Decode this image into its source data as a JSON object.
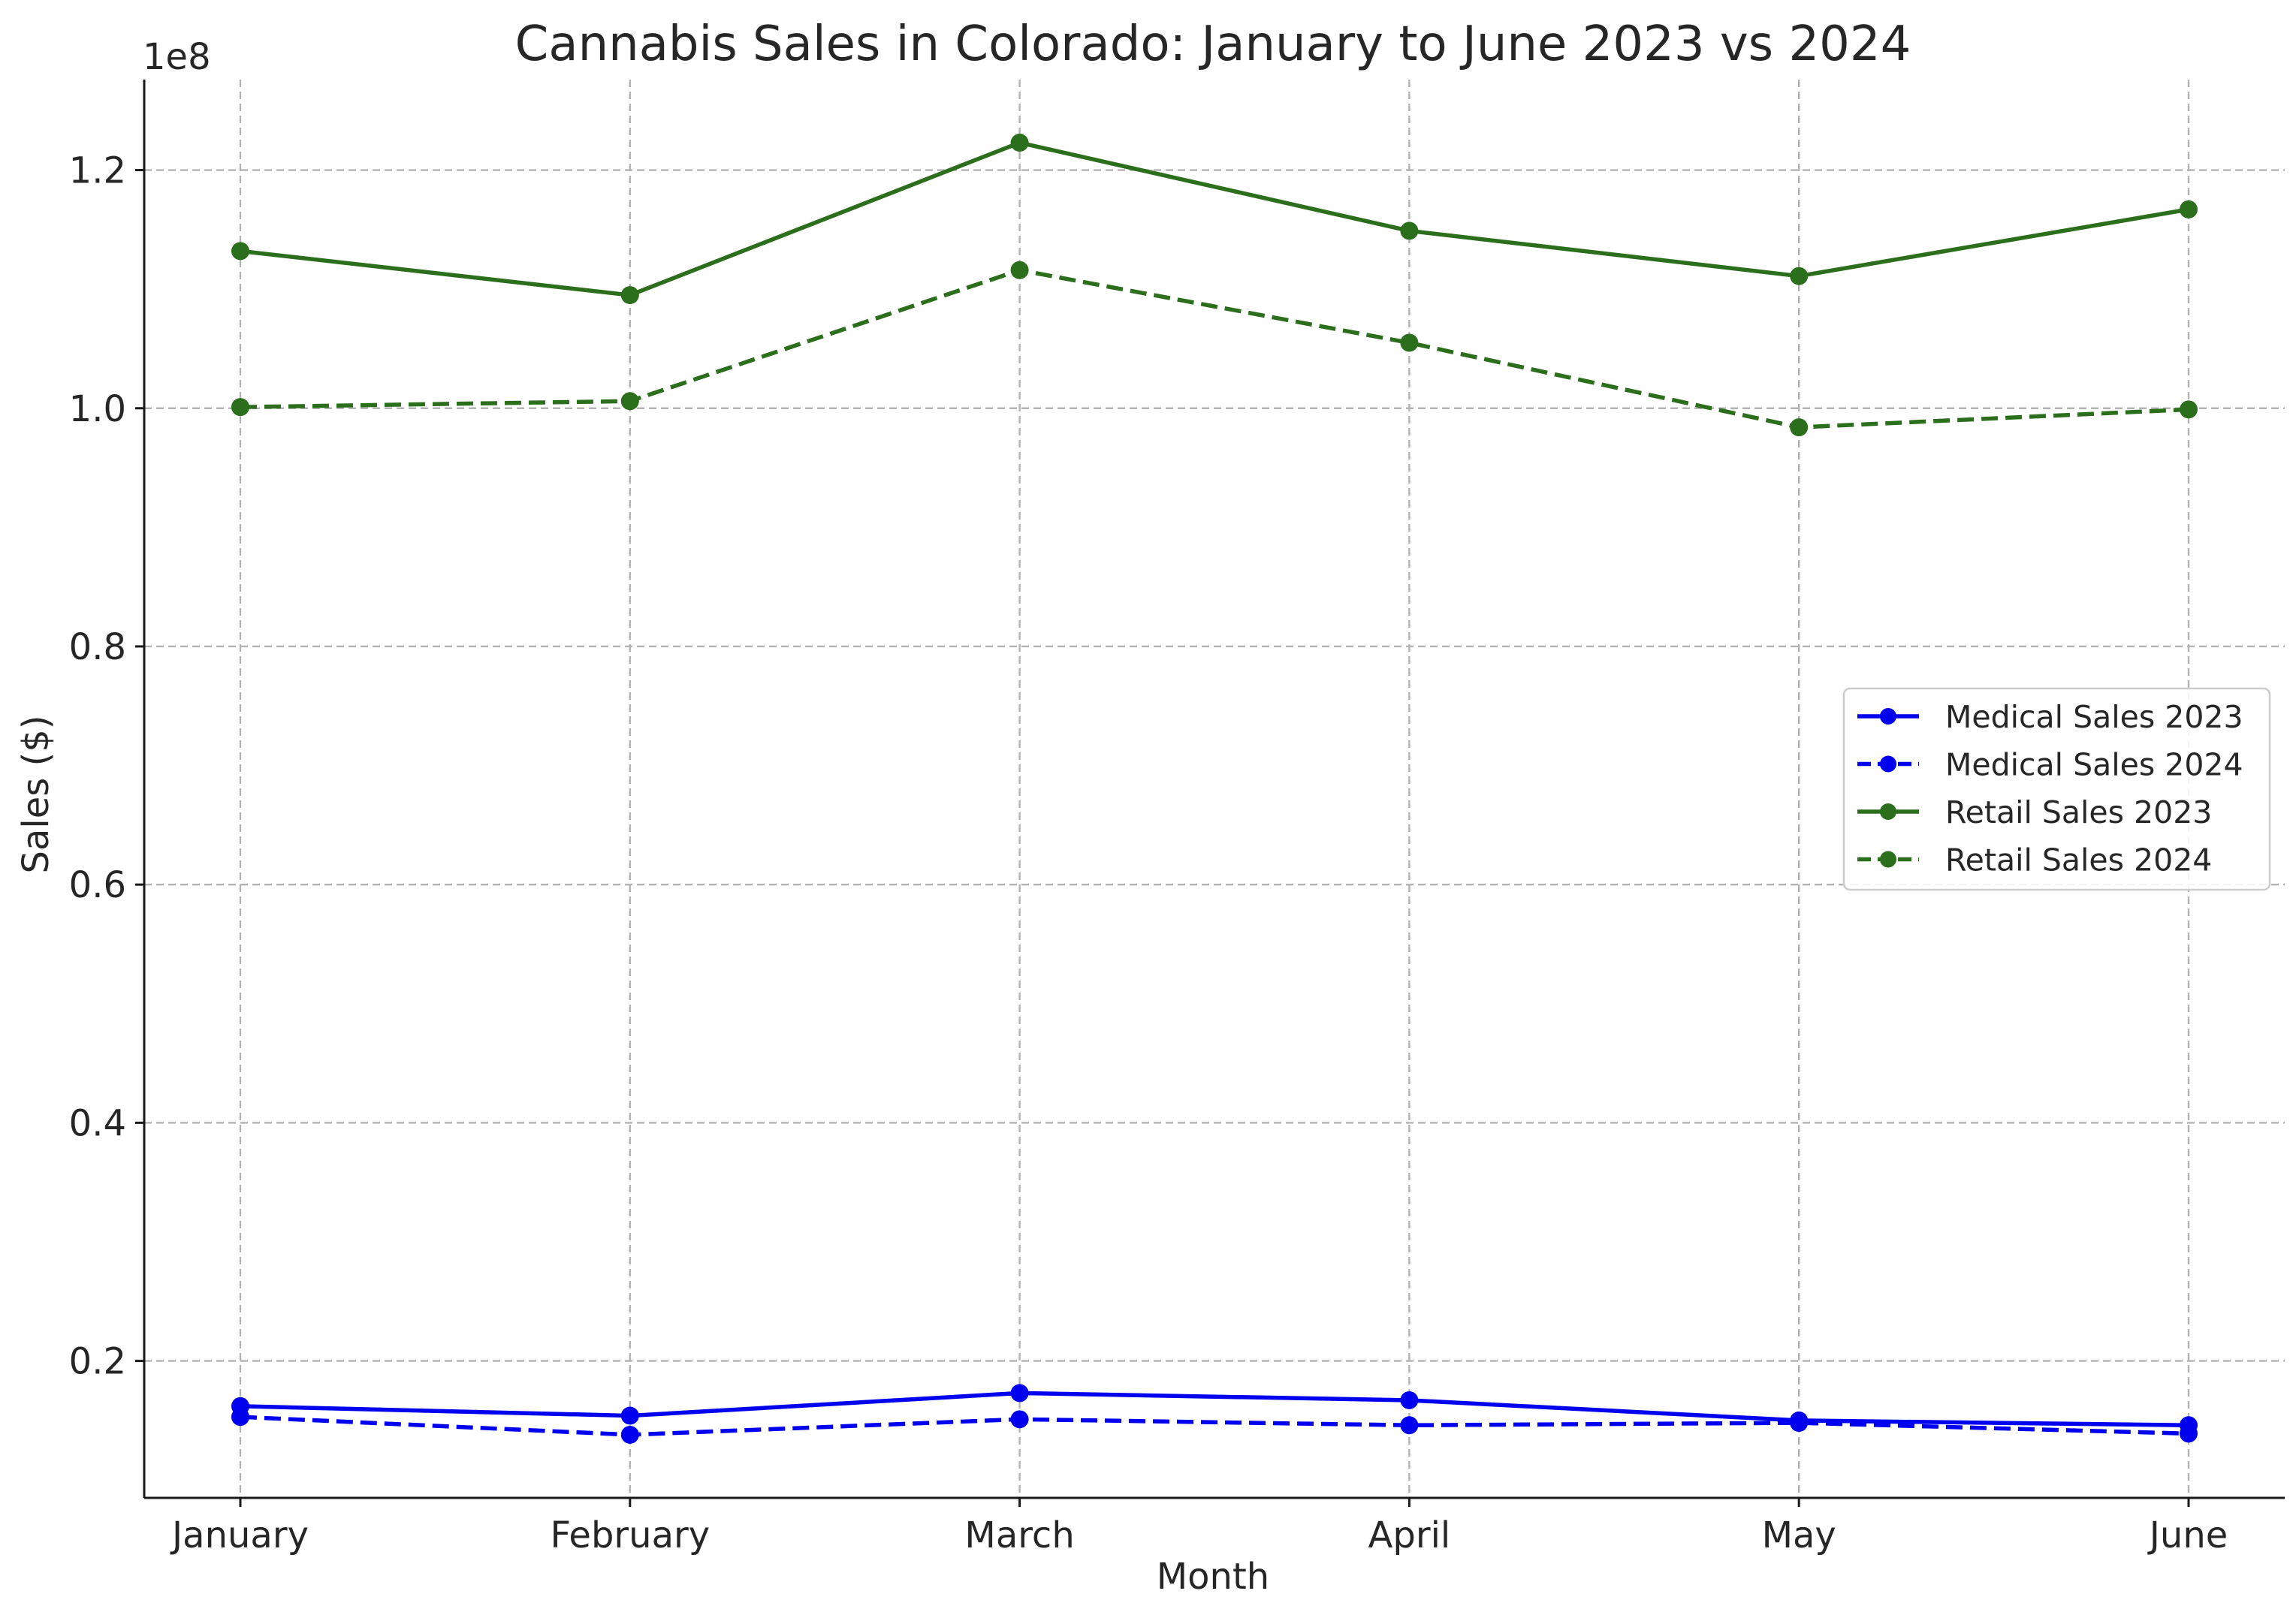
{
  "chart_data": {
    "type": "line",
    "title": "Cannabis Sales in Colorado: January to June 2023 vs 2024",
    "xlabel": "Month",
    "ylabel": "Sales ($)",
    "y_offset_label": "1e8",
    "categories": [
      "January",
      "February",
      "March",
      "April",
      "May",
      "June"
    ],
    "ylim": [
      8500000,
      127600000
    ],
    "yticks": [
      20000000,
      40000000,
      60000000,
      80000000,
      100000000,
      120000000
    ],
    "ytick_labels": [
      "0.2",
      "0.4",
      "0.6",
      "0.8",
      "1.0",
      "1.2"
    ],
    "grid": true,
    "legend_position": "center-right",
    "series": [
      {
        "name": "Medical Sales 2023",
        "color": "#0000ee",
        "dashed": false,
        "values": [
          16200000,
          15400000,
          17300000,
          16700000,
          15000000,
          14600000
        ]
      },
      {
        "name": "Medical Sales 2024",
        "color": "#0000ee",
        "dashed": true,
        "values": [
          15300000,
          13800000,
          15100000,
          14600000,
          14800000,
          13900000
        ]
      },
      {
        "name": "Retail Sales 2023",
        "color": "#2b6e1c",
        "dashed": false,
        "values": [
          113200000,
          109500000,
          122300000,
          114900000,
          111100000,
          116700000
        ]
      },
      {
        "name": "Retail Sales 2024",
        "color": "#2b6e1c",
        "dashed": true,
        "values": [
          100100000,
          100600000,
          111600000,
          105500000,
          98400000,
          99900000
        ]
      }
    ]
  }
}
